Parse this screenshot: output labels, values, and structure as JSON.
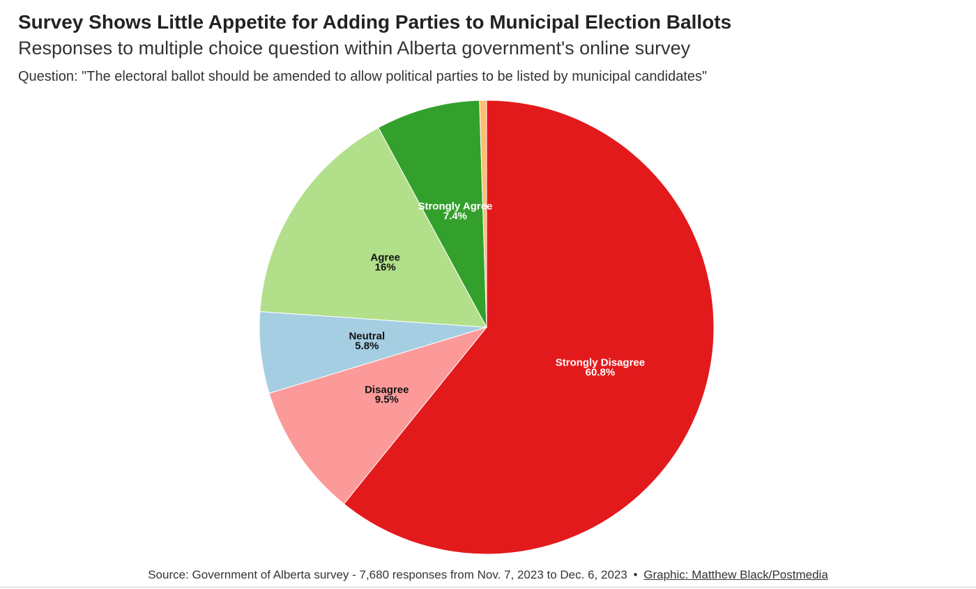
{
  "header": {
    "title": "Survey Shows Little Appetite for Adding Parties to Municipal Election Ballots",
    "subtitle": "Responses to multiple choice question within Alberta government's online survey",
    "question": "Question: \"The electoral ballot should be amended to allow political parties to be listed by municipal candidates\""
  },
  "chart_data": {
    "type": "pie",
    "start": "12 o'clock, clockwise",
    "slices": [
      {
        "label": "Strongly Disagree",
        "value": 60.8,
        "display": "60.8%",
        "color": "#e31a1c",
        "label_color": "#ffffff"
      },
      {
        "label": "Disagree",
        "value": 9.5,
        "display": "9.5%",
        "color": "#fb9a99",
        "label_color": "#111111"
      },
      {
        "label": "Neutral",
        "value": 5.8,
        "display": "5.8%",
        "color": "#a6cee3",
        "label_color": "#111111"
      },
      {
        "label": "Agree",
        "value": 16,
        "display": "16%",
        "color": "#b2df8a",
        "label_color": "#111111"
      },
      {
        "label": "Strongly Agree",
        "value": 7.4,
        "display": "7.4%",
        "color": "#33a02c",
        "label_color": "#ffffff"
      },
      {
        "label": "",
        "value": 0.5,
        "display": "",
        "color": "#fdbf6f",
        "label_color": "#111111"
      }
    ]
  },
  "footer": {
    "source": "Source: Government of Alberta survey - 7,680 responses from Nov. 7, 2023 to Dec. 6, 2023",
    "separator": "•",
    "credit": "Graphic: Matthew Black/Postmedia"
  }
}
